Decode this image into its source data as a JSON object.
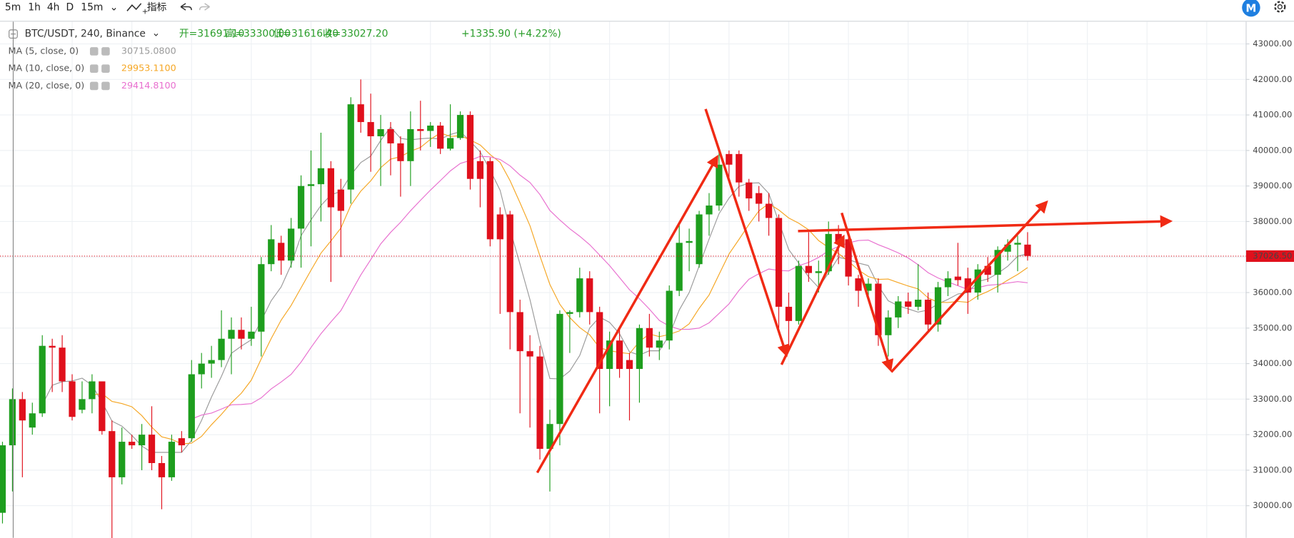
{
  "toolbar": {
    "intervals": [
      "5m",
      "1h",
      "4h",
      "D",
      "15m"
    ],
    "active_interval": "4h",
    "indicators_button": "指标"
  },
  "chart_data": {
    "type": "candlestick",
    "symbol": "BTC/USDT, 240, Binance",
    "ohlc_labels": [
      "开=31691.10",
      "高=33300.00",
      "低=31616.40",
      "收=33027.20"
    ],
    "change_label": "+1335.90 (+4.22%)",
    "up_color": "#1e9e1e",
    "down_color": "#e0101c",
    "label_color": "#2a9d2a",
    "indicators": [
      {
        "name": "MA (5, close, 0)",
        "period": 5,
        "value_label": "30715.0800",
        "color": "#9a9a9a"
      },
      {
        "name": "MA (10, close, 0)",
        "period": 10,
        "value_label": "29953.1100",
        "color": "#f5a623"
      },
      {
        "name": "MA (20, close, 0)",
        "period": 20,
        "value_label": "29414.8100",
        "color": "#e86fcf"
      }
    ],
    "ylim": [
      29096,
      43627
    ],
    "yticks": [
      {
        "value": 43000,
        "label": "43000.00"
      },
      {
        "value": 42000,
        "label": "42000.00"
      },
      {
        "value": 41000,
        "label": "41000.00"
      },
      {
        "value": 40000,
        "label": "40000.00"
      },
      {
        "value": 39000,
        "label": "39000.00"
      },
      {
        "value": 38000,
        "label": "38000.00"
      },
      {
        "value": 37000,
        "label": "37000.00"
      },
      {
        "value": 36000,
        "label": "36000.00"
      },
      {
        "value": 35000,
        "label": "35000.00"
      },
      {
        "value": 34000,
        "label": "34000.00"
      },
      {
        "value": 33000,
        "label": "33000.00"
      },
      {
        "value": 32000,
        "label": "32000.00"
      },
      {
        "value": 31000,
        "label": "31000.00"
      },
      {
        "value": 30000,
        "label": "30000.00"
      }
    ],
    "last_price": {
      "value": 37026.5,
      "label": "37026.50"
    },
    "grid": true,
    "candles": [
      [
        29800,
        31800,
        29500,
        31700
      ],
      [
        31700,
        33300,
        30400,
        33000
      ],
      [
        33000,
        33200,
        30800,
        32400
      ],
      [
        32200,
        32900,
        32000,
        32600
      ],
      [
        32600,
        34800,
        32500,
        34500
      ],
      [
        34500,
        34700,
        33200,
        34450
      ],
      [
        34450,
        34800,
        33200,
        33500
      ],
      [
        33500,
        33700,
        32400,
        32500
      ],
      [
        32700,
        33500,
        32600,
        33000
      ],
      [
        33000,
        33700,
        32600,
        33500
      ],
      [
        33500,
        33500,
        32000,
        32100
      ],
      [
        32100,
        32400,
        28900,
        30800
      ],
      [
        30800,
        32200,
        30600,
        31800
      ],
      [
        31800,
        32000,
        31600,
        31700
      ],
      [
        31700,
        32300,
        31000,
        32000
      ],
      [
        32000,
        32800,
        31000,
        31200
      ],
      [
        31200,
        31400,
        29900,
        30800
      ],
      [
        30800,
        32000,
        30700,
        31800
      ],
      [
        31900,
        32100,
        31500,
        31700
      ],
      [
        31900,
        34100,
        31800,
        33700
      ],
      [
        33700,
        34300,
        33300,
        34000
      ],
      [
        34000,
        34500,
        33600,
        34100
      ],
      [
        34100,
        35500,
        33900,
        34700
      ],
      [
        34700,
        35300,
        33700,
        34950
      ],
      [
        34950,
        35300,
        34400,
        34700
      ],
      [
        34700,
        35600,
        34500,
        34900
      ],
      [
        34900,
        37000,
        34200,
        36800
      ],
      [
        36800,
        37900,
        36600,
        37500
      ],
      [
        37400,
        37600,
        36500,
        36900
      ],
      [
        36900,
        38100,
        36700,
        37800
      ],
      [
        37800,
        39300,
        36700,
        39000
      ],
      [
        39000,
        40000,
        37300,
        39050
      ],
      [
        39050,
        40500,
        38000,
        39500
      ],
      [
        39500,
        39700,
        36300,
        38400
      ],
      [
        38900,
        39200,
        37000,
        38300
      ],
      [
        38900,
        41500,
        38500,
        41300
      ],
      [
        41300,
        42000,
        40500,
        40800
      ],
      [
        40800,
        41600,
        39400,
        40400
      ],
      [
        40400,
        41000,
        39000,
        40600
      ],
      [
        40600,
        40800,
        39300,
        40200
      ],
      [
        40200,
        40400,
        38700,
        39700
      ],
      [
        39700,
        41100,
        39000,
        40600
      ],
      [
        40600,
        41400,
        40000,
        40550
      ],
      [
        40550,
        40800,
        40100,
        40700
      ],
      [
        40700,
        40800,
        39900,
        40050
      ],
      [
        40050,
        41300,
        40000,
        40350
      ],
      [
        40350,
        41100,
        40300,
        41000
      ],
      [
        41000,
        41100,
        38900,
        39200
      ],
      [
        39700,
        40000,
        38400,
        39200
      ],
      [
        39700,
        39800,
        37300,
        37500
      ],
      [
        38200,
        38400,
        35400,
        37500
      ],
      [
        38200,
        38300,
        34400,
        35450
      ],
      [
        35450,
        35800,
        32600,
        34350
      ],
      [
        34350,
        34800,
        32200,
        34200
      ],
      [
        34200,
        34500,
        31300,
        31600
      ],
      [
        31600,
        32700,
        30400,
        32300
      ],
      [
        32300,
        35500,
        31700,
        35400
      ],
      [
        35400,
        35500,
        34300,
        35450
      ],
      [
        35450,
        36700,
        35300,
        36400
      ],
      [
        36400,
        36600,
        35100,
        35450
      ],
      [
        35450,
        35600,
        32600,
        33850
      ],
      [
        33850,
        34900,
        32800,
        34650
      ],
      [
        34650,
        35000,
        33600,
        33850
      ],
      [
        34100,
        34300,
        32400,
        33850
      ],
      [
        33850,
        35100,
        32900,
        35000
      ],
      [
        35000,
        35400,
        34200,
        34450
      ],
      [
        34450,
        34900,
        34100,
        34650
      ],
      [
        34650,
        36200,
        34400,
        36050
      ],
      [
        36050,
        37900,
        35900,
        37400
      ],
      [
        37400,
        37800,
        36600,
        37450
      ],
      [
        36800,
        38300,
        36700,
        38200
      ],
      [
        38200,
        38800,
        37600,
        38450
      ],
      [
        38450,
        40000,
        38300,
        39600
      ],
      [
        39900,
        40000,
        39200,
        39600
      ],
      [
        39900,
        40000,
        38700,
        39100
      ],
      [
        39100,
        39200,
        38300,
        38650
      ],
      [
        38800,
        39000,
        38000,
        38500
      ],
      [
        38500,
        38800,
        37600,
        38100
      ],
      [
        38100,
        38200,
        35000,
        35600
      ],
      [
        35600,
        36000,
        34400,
        35200
      ],
      [
        35200,
        36900,
        35100,
        36750
      ],
      [
        36750,
        37700,
        36300,
        36550
      ],
      [
        36550,
        36900,
        36000,
        36600
      ],
      [
        36600,
        38000,
        36500,
        37650
      ],
      [
        37650,
        37900,
        36800,
        37400
      ],
      [
        37500,
        37600,
        36200,
        36450
      ],
      [
        36400,
        36500,
        35600,
        36050
      ],
      [
        36050,
        36400,
        35900,
        36250
      ],
      [
        36250,
        36400,
        34500,
        34800
      ],
      [
        34800,
        35500,
        34200,
        35300
      ],
      [
        35300,
        35900,
        35000,
        35750
      ],
      [
        35750,
        36000,
        35400,
        35600
      ],
      [
        35600,
        36800,
        35500,
        35800
      ],
      [
        35800,
        36000,
        34900,
        35100
      ],
      [
        35100,
        36300,
        34900,
        36150
      ],
      [
        36150,
        36600,
        35900,
        36400
      ],
      [
        36450,
        37400,
        36200,
        36350
      ],
      [
        36400,
        36700,
        35400,
        36000
      ],
      [
        36000,
        36800,
        35800,
        36650
      ],
      [
        36750,
        37000,
        36300,
        36500
      ],
      [
        36500,
        37300,
        36000,
        37200
      ],
      [
        37150,
        37500,
        36900,
        37350
      ],
      [
        37350,
        37600,
        36600,
        37400
      ],
      [
        37350,
        37700,
        36900,
        37030
      ]
    ]
  }
}
